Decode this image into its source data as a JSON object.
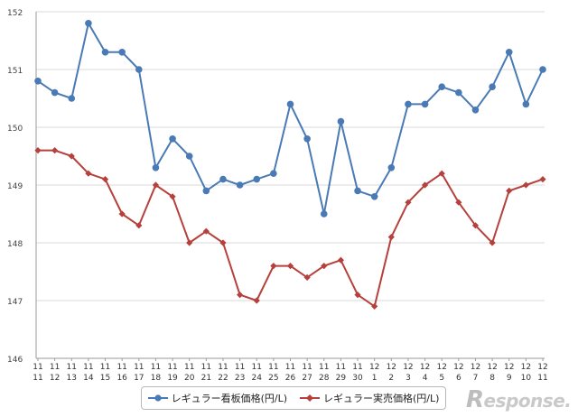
{
  "chart_data": {
    "type": "line",
    "title": "",
    "xlabel": "",
    "ylabel": "",
    "ylim": [
      146,
      152
    ],
    "yticks": [
      146,
      147,
      148,
      149,
      150,
      151,
      152
    ],
    "x_month": [
      "11",
      "11",
      "11",
      "11",
      "11",
      "11",
      "11",
      "11",
      "11",
      "11",
      "11",
      "11",
      "11",
      "11",
      "11",
      "11",
      "11",
      "11",
      "11",
      "11",
      "12",
      "12",
      "12",
      "12",
      "12",
      "12",
      "12",
      "12",
      "12",
      "12",
      "12"
    ],
    "x_day": [
      "11",
      "12",
      "13",
      "14",
      "15",
      "16",
      "17",
      "18",
      "19",
      "20",
      "21",
      "22",
      "23",
      "24",
      "25",
      "26",
      "27",
      "28",
      "29",
      "30",
      "1",
      "2",
      "3",
      "4",
      "5",
      "6",
      "7",
      "8",
      "9",
      "10",
      "11"
    ],
    "series": [
      {
        "name": "レギュラー看板価格(円/L)",
        "color": "#4a7ab5",
        "marker": "circle",
        "values": [
          150.8,
          150.6,
          150.5,
          151.8,
          151.3,
          151.3,
          151.0,
          149.3,
          149.8,
          149.5,
          148.9,
          149.1,
          149.0,
          149.1,
          149.2,
          150.4,
          149.8,
          148.5,
          150.1,
          148.9,
          148.8,
          149.3,
          150.4,
          150.4,
          150.7,
          150.6,
          150.3,
          150.7,
          151.3,
          150.4,
          151.0
        ]
      },
      {
        "name": "レギュラー実売価格(円/L)",
        "color": "#b5403c",
        "marker": "diamond",
        "values": [
          149.6,
          149.6,
          149.5,
          149.2,
          149.1,
          148.5,
          148.3,
          149.0,
          148.8,
          148.0,
          148.2,
          148.0,
          147.1,
          147.0,
          147.6,
          147.6,
          147.4,
          147.6,
          147.7,
          147.1,
          146.9,
          148.1,
          148.7,
          149.0,
          149.2,
          148.7,
          148.3,
          148.0,
          148.9,
          149.0,
          149.1
        ]
      }
    ],
    "legend_position": "bottom-center",
    "grid": true
  },
  "watermark": {
    "text_prefix": "R",
    "text_rest": "esponse."
  }
}
